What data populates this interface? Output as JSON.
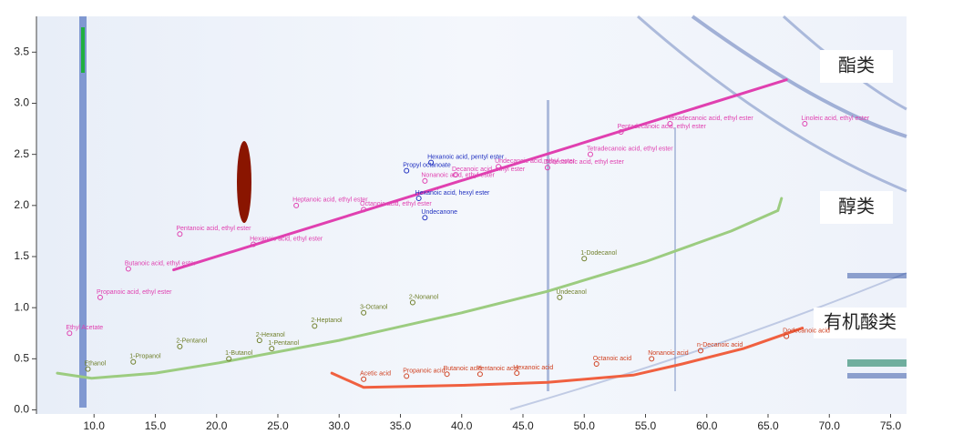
{
  "chart_data": {
    "type": "scatter",
    "xlim": [
      5.3,
      76.3
    ],
    "ylim": [
      -0.04,
      3.85
    ],
    "xticks": [
      {
        "value": 10,
        "label": "10.0"
      },
      {
        "value": 15,
        "label": "15.0"
      },
      {
        "value": 20,
        "label": "20.0"
      },
      {
        "value": 25,
        "label": "25.0"
      },
      {
        "value": 30,
        "label": "30.0"
      },
      {
        "value": 35,
        "label": "35.0"
      },
      {
        "value": 40,
        "label": "40.0"
      },
      {
        "value": 45,
        "label": "45.0"
      },
      {
        "value": 50,
        "label": "50.0"
      },
      {
        "value": 55,
        "label": "55.0"
      },
      {
        "value": 60,
        "label": "60.0"
      },
      {
        "value": 65,
        "label": "65.0"
      },
      {
        "value": 70,
        "label": "70.0"
      },
      {
        "value": 75,
        "label": "75.0"
      }
    ],
    "yticks": [
      {
        "value": 0,
        "label": "0.0"
      },
      0.5,
      {
        "value": 1,
        "label": "1.0"
      },
      1.5,
      {
        "value": 2,
        "label": "2.0"
      },
      2.5,
      {
        "value": 3,
        "label": "3.0"
      },
      3.5
    ],
    "series": [
      {
        "name": "酯类",
        "color": "#e040b0",
        "label_color": "#e040b0",
        "x": [
          16.5,
          66.5
        ],
        "y": [
          1.37,
          3.23
        ],
        "peaks": [
          {
            "label": "Ethyl Acetate",
            "x": 8.0,
            "y": 0.75
          },
          {
            "label": "Propanoic acid, ethyl ester",
            "x": 10.5,
            "y": 1.1
          },
          {
            "label": "Butanoic acid, ethyl ester",
            "x": 12.8,
            "y": 1.38
          },
          {
            "label": "Pentanoic acid, ethyl ester",
            "x": 17.0,
            "y": 1.72
          },
          {
            "label": "Hexanoic acid, ethyl ester",
            "x": 23.0,
            "y": 1.62
          },
          {
            "label": "Heptanoic acid, ethyl ester",
            "x": 26.5,
            "y": 2.0
          },
          {
            "label": "Octanoic acid, ethyl ester",
            "x": 32.0,
            "y": 1.96
          },
          {
            "label": "Nonanoic acid, ethyl ester",
            "x": 37.0,
            "y": 2.24
          },
          {
            "label": "Decanoic acid, ethyl ester",
            "x": 39.5,
            "y": 2.3
          },
          {
            "label": "Undecanoic acid, ethyl ester",
            "x": 43.0,
            "y": 2.38
          },
          {
            "label": "Dodecanoic acid, ethyl ester",
            "x": 47.0,
            "y": 2.37
          },
          {
            "label": "Tetradecanoic acid, ethyl ester",
            "x": 50.5,
            "y": 2.5
          },
          {
            "label": "Pentadecanoic acid, ethyl ester",
            "x": 53.0,
            "y": 2.72
          },
          {
            "label": "Hexadecanoic acid, ethyl ester",
            "x": 57.0,
            "y": 2.8
          },
          {
            "label": "Linoleic acid, ethyl ester",
            "x": 68.0,
            "y": 2.8
          }
        ]
      },
      {
        "name": "醇类",
        "color": "#9ccc80",
        "label_color": "#6f7f2a",
        "x": [
          7.0,
          9.8,
          15,
          20.2,
          30,
          40,
          47,
          55,
          62,
          65.8,
          66.1
        ],
        "y": [
          0.36,
          0.31,
          0.36,
          0.46,
          0.68,
          0.95,
          1.16,
          1.45,
          1.75,
          1.95,
          2.07
        ],
        "peaks": [
          {
            "label": "Ethanol",
            "x": 9.5,
            "y": 0.4
          },
          {
            "label": "1-Propanol",
            "x": 13.2,
            "y": 0.47
          },
          {
            "label": "2-Pentanol",
            "x": 17.0,
            "y": 0.62
          },
          {
            "label": "1-Butanol",
            "x": 21.0,
            "y": 0.5
          },
          {
            "label": "2-Hexanol",
            "x": 23.5,
            "y": 0.68
          },
          {
            "label": "1-Pentanol",
            "x": 24.5,
            "y": 0.6
          },
          {
            "label": "2-Heptanol",
            "x": 28.0,
            "y": 0.82
          },
          {
            "label": "3-Octanol",
            "x": 32.0,
            "y": 0.95
          },
          {
            "label": "2-Nonanol",
            "x": 36.0,
            "y": 1.05
          },
          {
            "label": "Undecanol",
            "x": 48.0,
            "y": 1.1
          },
          {
            "label": "1-Dodecanol",
            "x": 50.0,
            "y": 1.48
          }
        ]
      },
      {
        "name": "有机酸类",
        "color": "#f06040",
        "label_color": "#d04020",
        "x": [
          29.4,
          32,
          40,
          47,
          54,
          58,
          63,
          67.8
        ],
        "y": [
          0.36,
          0.22,
          0.24,
          0.27,
          0.34,
          0.45,
          0.6,
          0.8
        ],
        "peaks": [
          {
            "label": "Acetic acid",
            "x": 32.0,
            "y": 0.3
          },
          {
            "label": "Propanoic acid",
            "x": 35.5,
            "y": 0.33
          },
          {
            "label": "Butanoic acid",
            "x": 38.8,
            "y": 0.35
          },
          {
            "label": "Pentanoic acid",
            "x": 41.5,
            "y": 0.35
          },
          {
            "label": "Hexanoic acid",
            "x": 44.5,
            "y": 0.36
          },
          {
            "label": "Octanoic acid",
            "x": 51.0,
            "y": 0.45
          },
          {
            "label": "Nonanoic acid",
            "x": 55.5,
            "y": 0.5
          },
          {
            "label": "n-Decanoic acid",
            "x": 59.5,
            "y": 0.58
          },
          {
            "label": "Dodecanoic acid",
            "x": 66.5,
            "y": 0.72
          }
        ]
      }
    ],
    "other_peaks": {
      "color": "#2030c0",
      "peaks": [
        {
          "label": "Hexanoic acid, pentyl ester",
          "x": 37.5,
          "y": 2.42
        },
        {
          "label": "Propyl octanoate",
          "x": 35.5,
          "y": 2.34
        },
        {
          "label": "Hexanoic acid, hexyl ester",
          "x": 36.5,
          "y": 2.07
        },
        {
          "label": "Undecanone",
          "x": 37.0,
          "y": 1.88
        }
      ]
    }
  }
}
